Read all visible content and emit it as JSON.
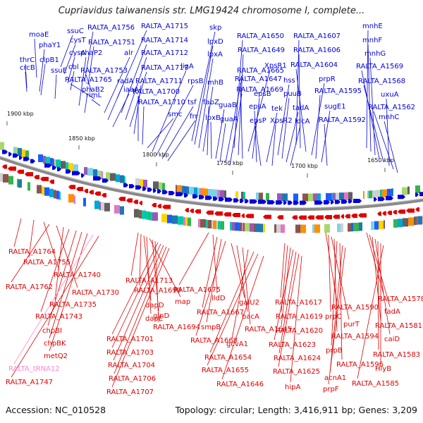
{
  "title": "Cupriavidus taiwanensis str. LMG19424 chromosome I, complete...",
  "footer": {
    "accession": "Accession: NC_010528",
    "summary": "Topology: circular; Length: 3,416,911 bp; Genes: 3,209"
  },
  "colors": {
    "forward": "#0000dd",
    "reverse": "#e00000",
    "rna": "#ff88cc",
    "backbone": "#888888"
  },
  "ticks": [
    "1900 kbp",
    "1850 kbp",
    "1800 kbp",
    "1750 kbp",
    "1700 kbp",
    "1650 kbp"
  ],
  "forward_genes": [
    "thrC",
    "crcB",
    "moaE",
    "phaY1",
    "clpB1",
    "ssuE",
    "ssuC",
    "cysT",
    "cysA",
    "cbl",
    "phaP2",
    "phaB2",
    "RALTA_A1756",
    "RALTA_A1751",
    "RALTA_A1753",
    "RALTA_A1765",
    "rimL",
    "alr",
    "radA",
    "iaaA",
    "RALTA_A1715",
    "RALTA_A1714",
    "RALTA_A1712",
    "RALTA_A1717",
    "RALTA_A1711",
    "RALTA_A1700",
    "RALTA_A1710",
    "smc",
    "ligA",
    "rpsB",
    "tsf",
    "frr",
    "skp",
    "lpxD",
    "lpxA",
    "mhB",
    "fabZ",
    "lpxB",
    "guaB",
    "guaA",
    "RALTA_A1665",
    "RALTA_A1669",
    "RALTA_A1650",
    "RALTA_A1649",
    "RALTA_A1647",
    "XpsR1",
    "epsB",
    "epsA",
    "epsP",
    "tek",
    "XpsR2",
    "hss",
    "puuB",
    "tadA",
    "ldcA",
    "RALTA_A1607",
    "RALTA_A1606",
    "RALTA_A1604",
    "prpR",
    "RALTA_A1595",
    "sugE1",
    "RALTA_A1592",
    "mnhE",
    "mnhF",
    "mnhG",
    "RALTA_A1569",
    "RALTA_A1568",
    "uxuA",
    "RALTA_A1562",
    "mnhC"
  ],
  "reverse_genes": [
    "RALTA_A1764",
    "RALTA_A1755",
    "RALTA_A1740",
    "RALTA_A1762",
    "RALTA_A1730",
    "RALTA_A1735",
    "RALTA_A1743",
    "chpBI",
    "chpBK",
    "metQ2",
    "RALTA_tRNA12",
    "RALTA_A1747",
    "RALTA_A1713",
    "RALTA_A1699",
    "dapD",
    "dapE",
    "map",
    "glnD",
    "RALTA_A1694",
    "RALTA_A1701",
    "RALTA_A1703",
    "RALTA_A1704",
    "RALTA_A1706",
    "RALTA_A1707",
    "RALTA_A1675",
    "lldD",
    "RALTA_A1667",
    "smpB",
    "RALTA_A1668",
    "galU2",
    "bacA",
    "RALTA_A1645",
    "gcvA1",
    "RALTA_A1654",
    "RALTA_A1655",
    "RALTA_A1646",
    "RALTA_A1617",
    "RALTA_A1619",
    "RALTA_A1620",
    "RALTA_A1623",
    "RALTA_A1624",
    "RALTA_A1625",
    "hipA",
    "RALTA_A1590",
    "prpC",
    "purT",
    "RALTA_A1594",
    "prpB",
    "RALTA_A1596",
    "acnA1",
    "prpF",
    "RALTA_A1578",
    "fadA",
    "RALTA_A1581",
    "caiD",
    "RALTA_A1583",
    "HlyB",
    "RALTA_A1585"
  ]
}
